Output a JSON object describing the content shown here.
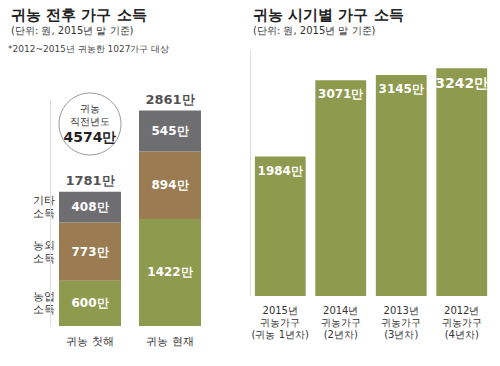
{
  "chart_data": [
    {
      "type": "bar",
      "title": "귀농 전후 가구 소득",
      "subtitle": "(단위: 원, 2015년 말 기준)",
      "note": "*2012~2015년 귀농한 1027가구 대상",
      "annotations": [
        {
          "text": "귀농 직전년도",
          "value": 4574,
          "label": "4574만"
        }
      ],
      "categories": [
        "귀농 첫해",
        "귀농 현재"
      ],
      "stacked": true,
      "data_labels": true,
      "tick_labels": "x",
      "grid": false,
      "ylim": [
        0,
        3000
      ],
      "series": [
        {
          "name": "농업 소득",
          "color": "#8e9a4e",
          "values": [
            600,
            1422
          ],
          "value_labels": [
            "600만",
            "1422만"
          ]
        },
        {
          "name": "농외 소득",
          "color": "#9a7b52",
          "values": [
            773,
            894
          ],
          "value_labels": [
            "773만",
            "894만"
          ]
        },
        {
          "name": "기타 소득",
          "color": "#6e6e70",
          "values": [
            408,
            545
          ],
          "value_labels": [
            "408만",
            "545만"
          ]
        }
      ],
      "totals": [
        1781,
        2861
      ],
      "total_labels": [
        "1781만",
        "2861만"
      ]
    },
    {
      "type": "bar",
      "title": "귀농 시기별 가구 소득",
      "subtitle": "(단위: 원, 2015년 말 기준)",
      "categories": [
        "2015년\n귀농가구\n(귀농 1년차)",
        "2014년\n귀농가구\n(2년차)",
        "2013년\n귀농가구\n(3년차)",
        "2012년\n귀농가구\n(4년차)"
      ],
      "values": [
        1984,
        3071,
        3145,
        3242
      ],
      "value_labels": [
        "1984만",
        "3071만",
        "3145만",
        "3242만"
      ],
      "color": "#8e9a4e",
      "data_labels": true,
      "tick_labels": "x",
      "grid": false,
      "ylim": [
        0,
        3500
      ]
    }
  ]
}
